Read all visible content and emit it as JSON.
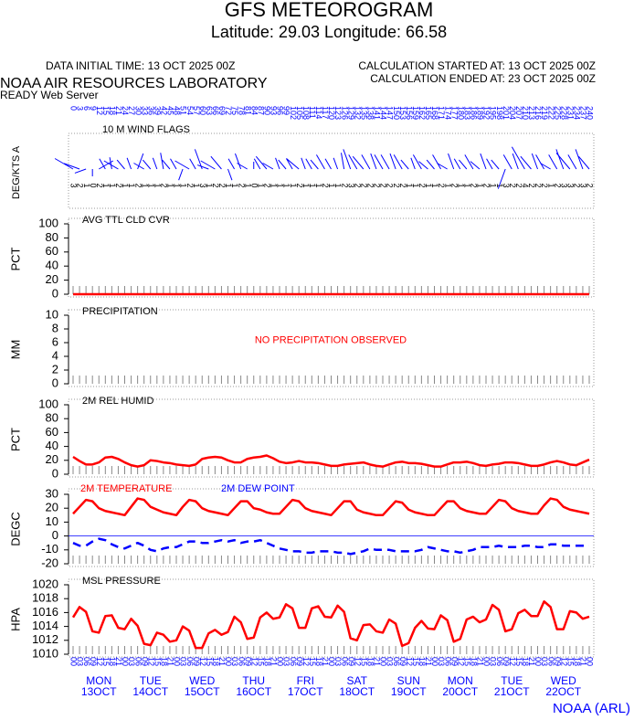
{
  "header": {
    "title": "GFS METEOROGRAM",
    "subtitle": "Latitude: 29.03 Longitude:  66.58",
    "initial_time": "DATA INITIAL TIME: 13 OCT 2025 00Z",
    "calc_started": "CALCULATION STARTED AT: 13 OCT 2025 00Z",
    "calc_ended": "CALCULATION ENDED AT: 23 OCT 2025 00Z",
    "lab": "NOAA AIR RESOURCES LABORATORY",
    "server": "READY Web Server"
  },
  "time": {
    "hours": [
      0,
      3,
      6,
      9,
      12,
      15,
      18,
      21,
      24,
      27,
      30,
      33,
      36,
      39,
      42,
      45,
      48,
      51,
      54,
      57,
      60,
      63,
      66,
      69,
      72,
      75,
      78,
      81,
      84,
      87,
      90,
      93,
      96,
      99,
      102,
      105,
      108,
      111,
      114,
      117,
      120,
      123,
      126,
      129,
      132,
      135,
      138,
      141,
      144,
      147,
      150,
      153,
      156,
      159,
      162,
      165,
      168,
      171,
      174,
      177,
      180,
      183,
      186,
      189,
      192,
      195,
      198,
      201,
      204,
      207,
      210,
      213,
      216,
      219,
      222,
      225,
      228,
      231,
      234,
      237,
      240
    ],
    "hour_labels": [
      "00",
      "03",
      "06",
      "09",
      "12",
      "15",
      "18",
      "21",
      "00",
      "03",
      "06",
      "09",
      "12",
      "15",
      "18",
      "21",
      "00",
      "03",
      "06",
      "09",
      "12",
      "15",
      "18",
      "21",
      "00",
      "03",
      "06",
      "09",
      "12",
      "15",
      "18",
      "21",
      "00",
      "03",
      "06",
      "09",
      "12",
      "15",
      "18",
      "21",
      "00",
      "03",
      "06",
      "09",
      "12",
      "15",
      "18",
      "21",
      "00",
      "03",
      "06",
      "09",
      "12",
      "15",
      "18",
      "21",
      "00",
      "03",
      "06",
      "09",
      "12",
      "15",
      "18",
      "21",
      "00",
      "03",
      "06",
      "09",
      "12",
      "15",
      "18",
      "21",
      "00",
      "03",
      "06",
      "09",
      "12",
      "15",
      "18",
      "21",
      "00"
    ],
    "days": [
      {
        "day": "MON",
        "date": "13OCT"
      },
      {
        "day": "TUE",
        "date": "14OCT"
      },
      {
        "day": "WED",
        "date": "15OCT"
      },
      {
        "day": "THU",
        "date": "16OCT"
      },
      {
        "day": "FRI",
        "date": "17OCT"
      },
      {
        "day": "SAT",
        "date": "18OCT"
      },
      {
        "day": "SUN",
        "date": "19OCT"
      },
      {
        "day": "MON",
        "date": "20OCT"
      },
      {
        "day": "TUE",
        "date": "21OCT"
      },
      {
        "day": "WED",
        "date": "22OCT"
      }
    ]
  },
  "footer": "NOAA (ARL)",
  "chart_data": [
    {
      "type": "wind",
      "title": "10 M  WIND FLAGS",
      "ylabel": "DEG/KTS  A",
      "color": "#0000ff",
      "direction": [
        300,
        290,
        250,
        180,
        60,
        330,
        350,
        300,
        320,
        340,
        20,
        300,
        320,
        340,
        350,
        320,
        330,
        200,
        300,
        330,
        340,
        290,
        300,
        320,
        160,
        330,
        340,
        300,
        0,
        330,
        320,
        300,
        340,
        320,
        330,
        310,
        340,
        330,
        320,
        330,
        330,
        340,
        350,
        340,
        330,
        320,
        330,
        340,
        330,
        330,
        340,
        330,
        320,
        340,
        330,
        310,
        320,
        330,
        300,
        340,
        330,
        320,
        330,
        310,
        340,
        330,
        320,
        200,
        330,
        340,
        330,
        320,
        340,
        330,
        300,
        330,
        340,
        320,
        330,
        340,
        320
      ],
      "speed": [
        3,
        2,
        1,
        0,
        2,
        1,
        1,
        2,
        1,
        1,
        2,
        1,
        1,
        1,
        2,
        1,
        1,
        1,
        2,
        1,
        3,
        1,
        2,
        2,
        1,
        1,
        2,
        1,
        0,
        1,
        2,
        1,
        1,
        1,
        1,
        2,
        1,
        1,
        1,
        2,
        1,
        1,
        2,
        3,
        2,
        2,
        2,
        2,
        2,
        2,
        2,
        2,
        1,
        1,
        2,
        1,
        1,
        2,
        1,
        2,
        1,
        1,
        2,
        1,
        2,
        1,
        1,
        3,
        2,
        2,
        4,
        2,
        2,
        2,
        1,
        2,
        3,
        3,
        2,
        3,
        2
      ]
    },
    {
      "type": "line",
      "title": "AVG TTL CLD CVR",
      "ylabel": "PCT",
      "ylim": [
        0,
        100
      ],
      "yticks": [
        0,
        20,
        40,
        60,
        80,
        100
      ],
      "series": [
        {
          "color": "#ff0000",
          "values": [
            0,
            0,
            0,
            0,
            0,
            0,
            0,
            0,
            0,
            0,
            0,
            0,
            0,
            0,
            0,
            0,
            0,
            0,
            0,
            0,
            0,
            0,
            0,
            0,
            0,
            0,
            0,
            0,
            0,
            0,
            0,
            0,
            0,
            0,
            0,
            0,
            0,
            0,
            0,
            0,
            0,
            0,
            0,
            0,
            0,
            0,
            0,
            0,
            0,
            0,
            0,
            0,
            0,
            0,
            0,
            0,
            0,
            0,
            0,
            0,
            0,
            0,
            0,
            0,
            0,
            0,
            0,
            0,
            0,
            0,
            0,
            0,
            0,
            0,
            0,
            0,
            0,
            0,
            0,
            0,
            0
          ]
        }
      ]
    },
    {
      "type": "line",
      "title": "PRECIPITATION",
      "ylabel": "MM",
      "ylim": [
        0,
        10
      ],
      "yticks": [
        0,
        2,
        4,
        6,
        8,
        10
      ],
      "annotation": "NO PRECIPITATION OBSERVED",
      "series": []
    },
    {
      "type": "line",
      "title": "2M REL HUMID",
      "ylabel": "PCT",
      "ylim": [
        0,
        100
      ],
      "yticks": [
        0,
        20,
        40,
        60,
        80,
        100
      ],
      "series": [
        {
          "color": "#ff0000",
          "values": [
            25,
            19,
            14,
            14,
            17,
            24,
            25,
            22,
            17,
            13,
            11,
            13,
            20,
            19,
            17,
            16,
            14,
            13,
            12,
            14,
            22,
            24,
            25,
            24,
            20,
            17,
            17,
            22,
            24,
            25,
            27,
            23,
            18,
            16,
            17,
            19,
            17,
            17,
            16,
            14,
            12,
            12,
            14,
            15,
            16,
            17,
            14,
            12,
            11,
            14,
            17,
            18,
            16,
            16,
            15,
            13,
            11,
            11,
            14,
            17,
            17,
            18,
            16,
            13,
            12,
            14,
            15,
            17,
            17,
            16,
            14,
            12,
            12,
            14,
            17,
            19,
            17,
            14,
            13,
            17,
            21
          ]
        }
      ]
    },
    {
      "type": "line",
      "ylabel": "DEGC",
      "ylim": [
        -20,
        30
      ],
      "yticks": [
        -20,
        -10,
        0,
        10,
        20,
        30
      ],
      "series": [
        {
          "name": "2M TEMPERATURE",
          "color": "#ff0000",
          "values": [
            16,
            21,
            26,
            25,
            20,
            18,
            17,
            16,
            15,
            21,
            27,
            26,
            21,
            19,
            17,
            16,
            15,
            21,
            26,
            25,
            20,
            18,
            17,
            16,
            15,
            20,
            25,
            25,
            20,
            19,
            17,
            16,
            16,
            21,
            26,
            25,
            20,
            18,
            17,
            16,
            15,
            20,
            25,
            25,
            19,
            17,
            16,
            15,
            15,
            20,
            25,
            24,
            19,
            17,
            16,
            15,
            15,
            20,
            25,
            25,
            20,
            18,
            17,
            16,
            16,
            21,
            26,
            25,
            20,
            18,
            17,
            16,
            16,
            22,
            27,
            26,
            21,
            19,
            18,
            17,
            16
          ]
        },
        {
          "name": "2M   DEW POINT",
          "color": "#0000ff",
          "dashed": true,
          "values": [
            -5,
            -7,
            -7,
            -4,
            -2,
            -3,
            -6,
            -8,
            -9,
            -7,
            -5,
            -7,
            -10,
            -11,
            -9,
            -8,
            -8,
            -6,
            -4,
            -4,
            -5,
            -5,
            -4,
            -3,
            -4,
            -3,
            -5,
            -4,
            -4,
            -3,
            -5,
            -7,
            -9,
            -10,
            -11,
            -11,
            -12,
            -12,
            -11,
            -11,
            -11,
            -12,
            -12,
            -13,
            -12,
            -11,
            -9,
            -10,
            -10,
            -10,
            -11,
            -11,
            -11,
            -11,
            -10,
            -8,
            -9,
            -10,
            -11,
            -11,
            -12,
            -11,
            -10,
            -8,
            -8,
            -8,
            -7,
            -8,
            -8,
            -8,
            -7,
            -7,
            -8,
            -8,
            -6,
            -6,
            -7,
            -7,
            -7,
            -7,
            -7
          ]
        }
      ]
    },
    {
      "type": "line",
      "title": "MSL PRESSURE",
      "ylabel": "HPA",
      "ylim": [
        1010,
        1020
      ],
      "yticks": [
        1010,
        1012,
        1014,
        1016,
        1018,
        1020
      ],
      "series": [
        {
          "color": "#ff0000",
          "values": [
            1015.3,
            1016.8,
            1016.1,
            1013.3,
            1013.1,
            1015.5,
            1015.6,
            1013.8,
            1013.6,
            1015.1,
            1014.1,
            1011.5,
            1011.3,
            1013.1,
            1012.8,
            1011.8,
            1012.0,
            1014.0,
            1013.4,
            1010.9,
            1010.9,
            1013.0,
            1013.5,
            1012.8,
            1013.2,
            1015.4,
            1014.6,
            1012.2,
            1012.4,
            1015.3,
            1016.0,
            1015.1,
            1015.3,
            1017.2,
            1016.6,
            1013.8,
            1013.8,
            1016.6,
            1016.9,
            1015.4,
            1015.3,
            1017.0,
            1016.1,
            1012.3,
            1012.0,
            1014.2,
            1014.3,
            1013.3,
            1013.1,
            1015.0,
            1014.4,
            1011.2,
            1011.6,
            1013.8,
            1014.8,
            1013.7,
            1013.6,
            1015.6,
            1014.9,
            1011.8,
            1012.2,
            1015.0,
            1015.4,
            1014.6,
            1015.0,
            1017.1,
            1016.4,
            1013.3,
            1013.6,
            1015.9,
            1016.4,
            1015.5,
            1015.5,
            1017.6,
            1016.8,
            1013.6,
            1013.6,
            1016.2,
            1016.0,
            1015.1,
            1015.4
          ]
        }
      ]
    }
  ]
}
